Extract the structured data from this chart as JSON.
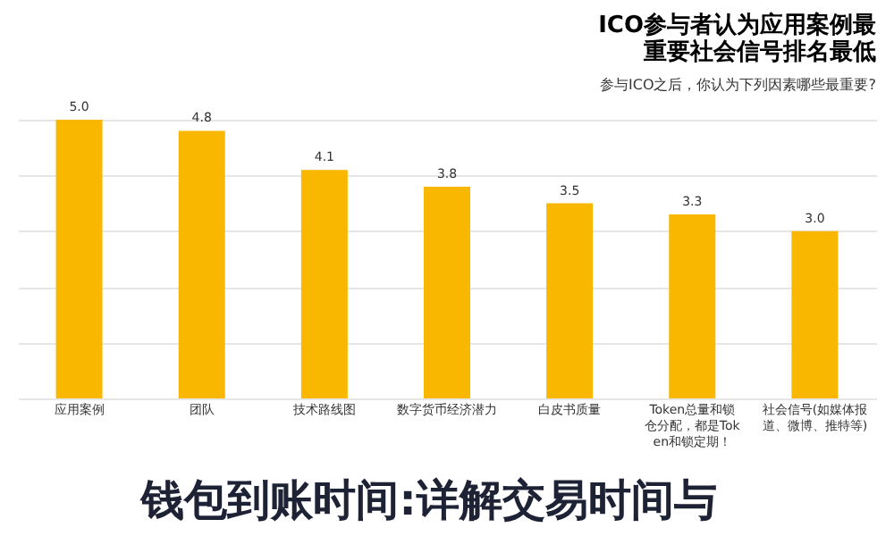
{
  "chart_data": {
    "type": "bar",
    "title": "ICO参与者认为应用案例最重要社会信号排名最低",
    "subtitle": "参与ICO之后，你认为下列因素哪些最重要?",
    "categories": [
      "应用案例",
      "团队",
      "技术路线图",
      "数字货币经济潜力",
      "白皮书质量",
      "Token总量和锁仓分配，都是Token和锁定期！",
      "社会信号(如媒体报道、微博、推特等)"
    ],
    "values": [
      5.0,
      4.8,
      4.1,
      3.8,
      3.5,
      3.3,
      3.0
    ],
    "value_labels": [
      "5.0",
      "4.8",
      "4.1",
      "3.8",
      "3.5",
      "3.3",
      "3.0"
    ],
    "color": "#f9b700",
    "tick_labels": "x",
    "grid": "y",
    "annotations": [
      "钱包到账时间:详解交易时间与"
    ]
  }
}
